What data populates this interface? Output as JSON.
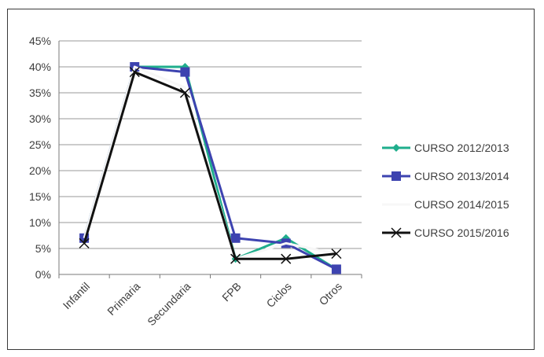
{
  "chart_data": {
    "type": "line",
    "categories": [
      "Infantil",
      "Primaria",
      "Secundaria",
      "FPB",
      "Ciclos",
      "Otros"
    ],
    "ylim": [
      0,
      45
    ],
    "yticks": [
      "0%",
      "5%",
      "10%",
      "15%",
      "20%",
      "25%",
      "30%",
      "35%",
      "40%",
      "45%"
    ],
    "grid": true,
    "legend_position": "right",
    "series": [
      {
        "name": "CURSO 2012/2013",
        "values": [
          7,
          40,
          40,
          3,
          7,
          1
        ],
        "color": "#1fae8c",
        "marker": "diamond"
      },
      {
        "name": "CURSO 2013/2014",
        "values": [
          7,
          40,
          39,
          7,
          6,
          1
        ],
        "color": "#3d43b0",
        "marker": "square"
      },
      {
        "name": "CURSO 2014/2015",
        "values": [
          7,
          40,
          36,
          3,
          6,
          4
        ],
        "color": "#f7f7f7",
        "marker": "none"
      },
      {
        "name": "CURSO 2015/2016",
        "values": [
          6,
          39,
          35,
          3,
          3,
          4
        ],
        "color": "#111111",
        "marker": "x"
      }
    ]
  }
}
